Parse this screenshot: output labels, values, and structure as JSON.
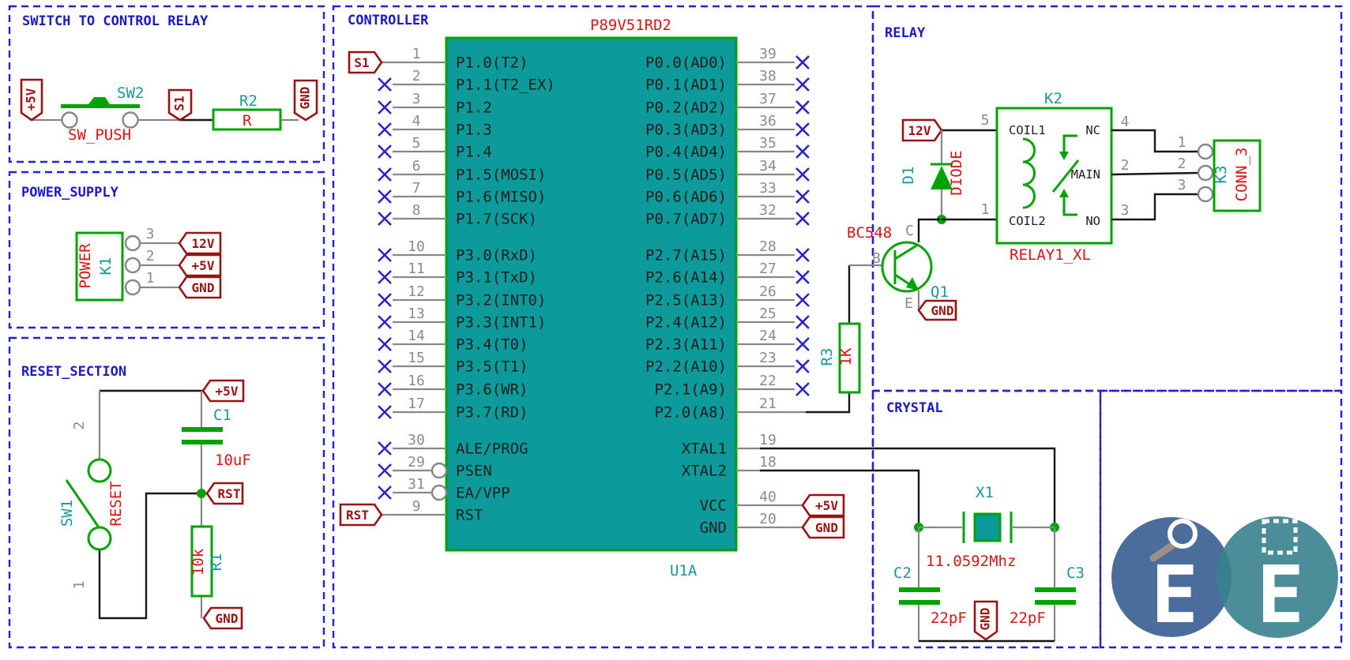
{
  "palette": {
    "border_blue": "#2121d8",
    "title_blue": "#1a1ac8",
    "flag_dark_red": "#9c1212",
    "value_red": "#d81414",
    "ref_teal": "#17999b",
    "component_green": "#00a300",
    "chip_teal": "#0c9a9a",
    "wire_gray": "#878787",
    "wire_black": "#161616",
    "no_connect_blue": "#2626cc",
    "logo_left_blue": "#4a6d9c",
    "logo_right_teal": "#37828e"
  },
  "sections": {
    "switch": {
      "title": "SWITCH TO CONTROL RELAY",
      "flag_5v": "+5V",
      "label_s1": "S1",
      "flag_gnd": "GND",
      "sw2_ref": "SW2",
      "sw2_value": "SW_PUSH",
      "r2_ref": "R2",
      "r2_value": "R"
    },
    "power": {
      "title": "POWER_SUPPLY",
      "k1_ref": "K1",
      "k1_value": "POWER",
      "pin3": "3",
      "pin2": "2",
      "pin1": "1",
      "flag_12v": "12V",
      "flag_5v": "+5V",
      "flag_gnd": "GND"
    },
    "reset": {
      "title": "RESET_SECTION",
      "flag_5v": "+5V",
      "flag_rst": "RST",
      "flag_gnd": "GND",
      "c1_ref": "C1",
      "c1_value": "10uF",
      "sw1_ref": "SW1",
      "sw1_value": "RESET",
      "r1_ref": "R1",
      "r1_value": "10k",
      "pin2": "2",
      "pin1": "1"
    },
    "controller": {
      "title": "CONTROLLER",
      "chip_value": "P89V51RD2",
      "chip_ref": "U1A",
      "left_pins": [
        {
          "num": "1",
          "name": "P1.0(T2)",
          "conn": "flag",
          "flag": "S1"
        },
        {
          "num": "2",
          "name": "P1.1(T2_EX)",
          "conn": "nc"
        },
        {
          "num": "3",
          "name": "P1.2",
          "conn": "nc"
        },
        {
          "num": "4",
          "name": "P1.3",
          "conn": "nc"
        },
        {
          "num": "5",
          "name": "P1.4",
          "conn": "nc"
        },
        {
          "num": "6",
          "name": "P1.5(MOSI)",
          "conn": "nc"
        },
        {
          "num": "7",
          "name": "P1.6(MISO)",
          "conn": "nc"
        },
        {
          "num": "8",
          "name": "P1.7(SCK)",
          "conn": "nc"
        },
        {
          "num": "10",
          "name": "P3.0(RxD)",
          "conn": "nc"
        },
        {
          "num": "11",
          "name": "P3.1(TxD)",
          "conn": "nc"
        },
        {
          "num": "12",
          "name": "P3.2(INT0)",
          "conn": "nc"
        },
        {
          "num": "13",
          "name": "P3.3(INT1)",
          "conn": "nc"
        },
        {
          "num": "14",
          "name": "P3.4(T0)",
          "conn": "nc"
        },
        {
          "num": "15",
          "name": "P3.5(T1)",
          "conn": "nc"
        },
        {
          "num": "16",
          "name": "P3.6(WR)",
          "conn": "nc"
        },
        {
          "num": "17",
          "name": "P3.7(RD)",
          "conn": "nc"
        },
        {
          "num": "30",
          "name": "ALE/PROG",
          "conn": "nc"
        },
        {
          "num": "29",
          "name": "PSEN",
          "conn": "nc",
          "invert": true
        },
        {
          "num": "31",
          "name": "EA/VPP",
          "conn": "nc",
          "invert": true
        },
        {
          "num": "9",
          "name": "RST",
          "conn": "flag",
          "flag": "RST"
        }
      ],
      "right_pins": [
        {
          "num": "39",
          "name": "P0.0(AD0)",
          "conn": "nc"
        },
        {
          "num": "38",
          "name": "P0.1(AD1)",
          "conn": "nc"
        },
        {
          "num": "37",
          "name": "P0.2(AD2)",
          "conn": "nc"
        },
        {
          "num": "36",
          "name": "P0.3(AD3)",
          "conn": "nc"
        },
        {
          "num": "35",
          "name": "P0.4(AD4)",
          "conn": "nc"
        },
        {
          "num": "34",
          "name": "P0.5(AD5)",
          "conn": "nc"
        },
        {
          "num": "33",
          "name": "P0.6(AD6)",
          "conn": "nc"
        },
        {
          "num": "32",
          "name": "P0.7(AD7)",
          "conn": "nc"
        },
        {
          "num": "28",
          "name": "P2.7(A15)",
          "conn": "nc"
        },
        {
          "num": "27",
          "name": "P2.6(A14)",
          "conn": "nc"
        },
        {
          "num": "26",
          "name": "P2.5(A13)",
          "conn": "nc"
        },
        {
          "num": "25",
          "name": "P2.4(A12)",
          "conn": "nc"
        },
        {
          "num": "24",
          "name": "P2.3(A11)",
          "conn": "nc"
        },
        {
          "num": "23",
          "name": "P2.2(A10)",
          "conn": "nc"
        },
        {
          "num": "22",
          "name": "P2.1(A9)",
          "conn": "nc"
        },
        {
          "num": "21",
          "name": "P2.0(A8)",
          "conn": "route"
        },
        {
          "num": "19",
          "name": "XTAL1",
          "conn": "route"
        },
        {
          "num": "18",
          "name": "XTAL2",
          "conn": "route"
        },
        {
          "num": "40",
          "name": "VCC",
          "conn": "flag",
          "flag": "+5V"
        },
        {
          "num": "20",
          "name": "GND",
          "conn": "flag",
          "flag": "GND"
        }
      ]
    },
    "relay": {
      "title": "RELAY",
      "flag_12v": "12V",
      "d1_ref": "D1",
      "d1_value": "DIODE",
      "k2_ref": "K2",
      "k2_value": "RELAY1_XL",
      "coil1": "COIL1",
      "coil2": "COIL2",
      "nc": "NC",
      "main": "MAIN",
      "no": "NO",
      "pin5": "5",
      "pin1": "1",
      "pin4": "4",
      "pin2": "2",
      "pin3": "3",
      "q1_ref": "Q1",
      "q1_value": "BC548",
      "term_b": "B",
      "term_c": "C",
      "term_e": "E",
      "flag_gnd": "GND",
      "r3_ref": "R3",
      "r3_value": "1K",
      "k3_ref": "K3",
      "k3_value": "CONN_3",
      "k3_pin1": "1",
      "k3_pin2": "2",
      "k3_pin3": "3"
    },
    "crystal": {
      "title": "CRYSTAL",
      "x1_ref": "X1",
      "x1_value": "11.0592Mhz",
      "c2_ref": "C2",
      "c2_value": "22pF",
      "c3_ref": "C3",
      "c3_value": "22pF",
      "flag_gnd": "GND"
    },
    "logo": {
      "left_letter": "E",
      "right_letter": "E"
    }
  }
}
